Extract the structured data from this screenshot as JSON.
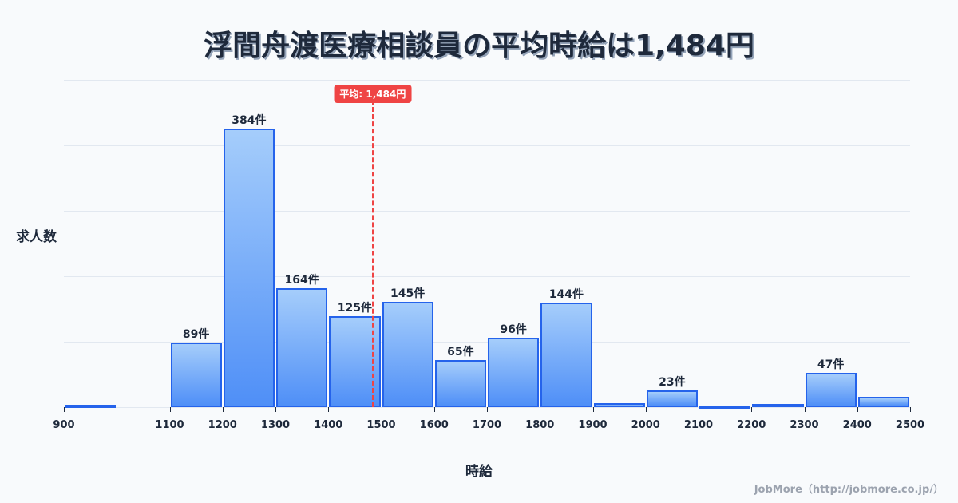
{
  "title": "浮間舟渡医療相談員の平均時給は1,484円",
  "average": {
    "label": "平均: 1,484円",
    "value": 1484,
    "color": "#ef4444"
  },
  "axis": {
    "ylabel": "求人数",
    "xlabel": "時給"
  },
  "credit": "JobMore（http://jobmore.co.jp/）",
  "colors": {
    "bar_top": "#a5cdfb",
    "bar_bottom": "#4f8ff7",
    "bar_border": "#2563eb",
    "text": "#1e293b",
    "grid": "#e2e8f0"
  },
  "chart_data": {
    "type": "bar",
    "title": "浮間舟渡医療相談員の平均時給は1,484円",
    "xlabel": "時給",
    "ylabel": "求人数",
    "x_range": [
      900,
      2500
    ],
    "bin_width": 100,
    "bins": [
      {
        "start": 900,
        "end": 1000,
        "value": 3,
        "label": ""
      },
      {
        "start": 1000,
        "end": 1100,
        "value": 0,
        "label": ""
      },
      {
        "start": 1100,
        "end": 1200,
        "value": 89,
        "label": "89件"
      },
      {
        "start": 1200,
        "end": 1300,
        "value": 384,
        "label": "384件"
      },
      {
        "start": 1300,
        "end": 1400,
        "value": 164,
        "label": "164件"
      },
      {
        "start": 1400,
        "end": 1500,
        "value": 125,
        "label": "125件"
      },
      {
        "start": 1500,
        "end": 1600,
        "value": 145,
        "label": "145件"
      },
      {
        "start": 1600,
        "end": 1700,
        "value": 65,
        "label": "65件"
      },
      {
        "start": 1700,
        "end": 1800,
        "value": 96,
        "label": "96件"
      },
      {
        "start": 1800,
        "end": 1900,
        "value": 144,
        "label": "144件"
      },
      {
        "start": 1900,
        "end": 2000,
        "value": 6,
        "label": ""
      },
      {
        "start": 2000,
        "end": 2100,
        "value": 23,
        "label": "23件"
      },
      {
        "start": 2100,
        "end": 2200,
        "value": 1,
        "label": ""
      },
      {
        "start": 2200,
        "end": 2300,
        "value": 4,
        "label": ""
      },
      {
        "start": 2300,
        "end": 2400,
        "value": 47,
        "label": "47件"
      },
      {
        "start": 2400,
        "end": 2500,
        "value": 14,
        "label": ""
      }
    ],
    "tick_labels": [
      "900",
      "1100",
      "1200",
      "1300",
      "1400",
      "1500",
      "1600",
      "1700",
      "1800",
      "1900",
      "2000",
      "2100",
      "2200",
      "2300",
      "2400",
      "2500"
    ],
    "ylim": [
      0,
      451
    ],
    "grid": true,
    "average_line": {
      "value": 1484,
      "label": "平均: 1,484円",
      "style": "dashed",
      "color": "#ef4444"
    },
    "legend": null
  }
}
